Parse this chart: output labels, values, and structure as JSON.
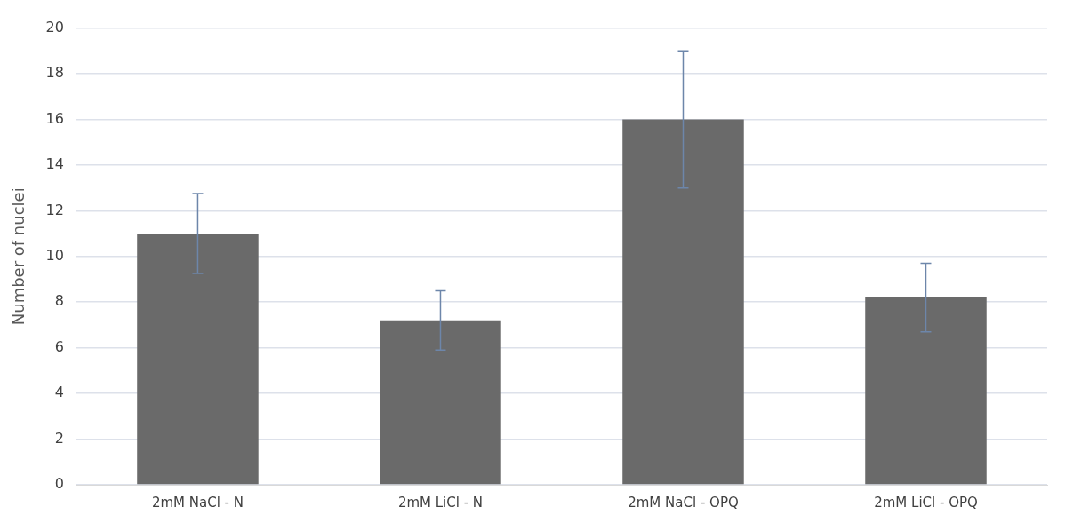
{
  "chart_data": {
    "type": "bar",
    "ylabel": "Number of nuclei",
    "categories": [
      "2mM NaCl - N",
      "2mM LiCl - N",
      "2mM NaCl - OPQ",
      "2mM LiCl - OPQ"
    ],
    "values": [
      11.0,
      7.2,
      16.0,
      8.2
    ],
    "errors": [
      1.75,
      1.3,
      3.0,
      1.5
    ],
    "color": "#6a6a6a",
    "ylim": [
      0,
      20
    ],
    "yticks": [
      0,
      2,
      4,
      6,
      8,
      10,
      12,
      14,
      16,
      18,
      20
    ],
    "grid": "y",
    "legend": false
  }
}
